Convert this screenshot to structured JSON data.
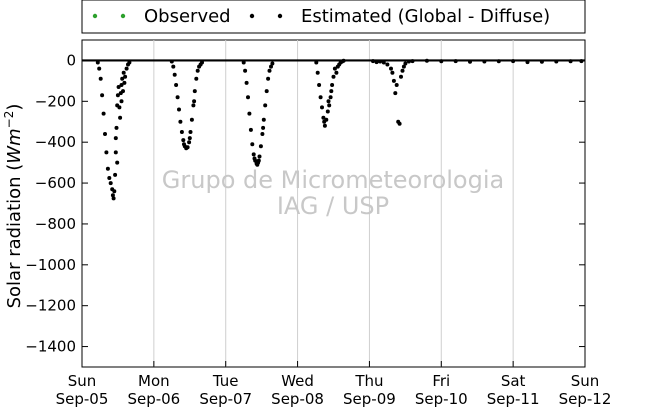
{
  "chart_data": {
    "type": "scatter",
    "ylabel": "Solar radiation (Wm⁻²)",
    "ylabel_main": "Solar radiation (",
    "ylabel_unit": "Wm",
    "ylabel_exp": "−2",
    "ylabel_close": ")",
    "ylim": [
      -1500,
      100
    ],
    "yticks": [
      0,
      -200,
      -400,
      -600,
      -800,
      -1000,
      -1200,
      -1400
    ],
    "ytick_labels": [
      "0",
      "−200",
      "−400",
      "−600",
      "−800",
      "−1000",
      "−1200",
      "−1400"
    ],
    "xlim": [
      0,
      7
    ],
    "xticks": [
      {
        "x": 0,
        "day": "Sun",
        "date": "Sep-05"
      },
      {
        "x": 1,
        "day": "Mon",
        "date": "Sep-06"
      },
      {
        "x": 2,
        "day": "Tue",
        "date": "Sep-07"
      },
      {
        "x": 3,
        "day": "Wed",
        "date": "Sep-08"
      },
      {
        "x": 4,
        "day": "Thu",
        "date": "Sep-09"
      },
      {
        "x": 5,
        "day": "Fri",
        "date": "Sep-10"
      },
      {
        "x": 6,
        "day": "Sat",
        "date": "Sep-11"
      },
      {
        "x": 7,
        "day": "Sun",
        "date": "Sep-12"
      }
    ],
    "grid": "x",
    "legend_position": "top",
    "watermark": [
      "Grupo de Micrometeorologia",
      "IAG / USP"
    ],
    "series": [
      {
        "name": "Observed",
        "color": "#2ca02c",
        "points": []
      },
      {
        "name": "Estimated (Global - Diffuse)",
        "color": "#000000",
        "points": [
          [
            0.22,
            -10
          ],
          [
            0.24,
            -40
          ],
          [
            0.26,
            -90
          ],
          [
            0.28,
            -170
          ],
          [
            0.3,
            -260
          ],
          [
            0.32,
            -360
          ],
          [
            0.34,
            -450
          ],
          [
            0.36,
            -530
          ],
          [
            0.38,
            -575
          ],
          [
            0.4,
            -600
          ],
          [
            0.42,
            -630
          ],
          [
            0.43,
            -660
          ],
          [
            0.44,
            -675
          ],
          [
            0.45,
            -640
          ],
          [
            0.46,
            -560
          ],
          [
            0.47,
            -450
          ],
          [
            0.48,
            -330
          ],
          [
            0.49,
            -220
          ],
          [
            0.5,
            -170
          ],
          [
            0.52,
            -230
          ],
          [
            0.53,
            -280
          ],
          [
            0.54,
            -160
          ],
          [
            0.55,
            -120
          ],
          [
            0.56,
            -90
          ],
          [
            0.57,
            -150
          ],
          [
            0.58,
            -60
          ],
          [
            0.6,
            -80
          ],
          [
            0.62,
            -40
          ],
          [
            0.64,
            -20
          ],
          [
            0.66,
            -10
          ],
          [
            0.47,
            -380
          ],
          [
            0.49,
            -500
          ],
          [
            0.51,
            -130
          ],
          [
            0.55,
            -200
          ],
          [
            0.59,
            -110
          ],
          [
            1.25,
            -5
          ],
          [
            1.27,
            -30
          ],
          [
            1.29,
            -70
          ],
          [
            1.31,
            -120
          ],
          [
            1.33,
            -180
          ],
          [
            1.35,
            -240
          ],
          [
            1.37,
            -300
          ],
          [
            1.39,
            -350
          ],
          [
            1.41,
            -390
          ],
          [
            1.43,
            -420
          ],
          [
            1.45,
            -430
          ],
          [
            1.47,
            -425
          ],
          [
            1.49,
            -400
          ],
          [
            1.51,
            -350
          ],
          [
            1.53,
            -290
          ],
          [
            1.55,
            -220
          ],
          [
            1.57,
            -150
          ],
          [
            1.59,
            -90
          ],
          [
            1.61,
            -50
          ],
          [
            1.63,
            -30
          ],
          [
            1.65,
            -20
          ],
          [
            1.67,
            -10
          ],
          [
            1.42,
            -410
          ],
          [
            1.5,
            -380
          ],
          [
            1.56,
            -200
          ],
          [
            2.25,
            -10
          ],
          [
            2.27,
            -50
          ],
          [
            2.29,
            -110
          ],
          [
            2.31,
            -180
          ],
          [
            2.33,
            -260
          ],
          [
            2.35,
            -340
          ],
          [
            2.37,
            -410
          ],
          [
            2.39,
            -460
          ],
          [
            2.41,
            -490
          ],
          [
            2.43,
            -505
          ],
          [
            2.45,
            -500
          ],
          [
            2.47,
            -470
          ],
          [
            2.49,
            -420
          ],
          [
            2.51,
            -360
          ],
          [
            2.53,
            -290
          ],
          [
            2.55,
            -220
          ],
          [
            2.57,
            -150
          ],
          [
            2.59,
            -90
          ],
          [
            2.61,
            -50
          ],
          [
            2.63,
            -30
          ],
          [
            2.65,
            -15
          ],
          [
            2.4,
            -480
          ],
          [
            2.44,
            -510
          ],
          [
            2.46,
            -490
          ],
          [
            2.52,
            -330
          ],
          [
            3.26,
            -10
          ],
          [
            3.28,
            -60
          ],
          [
            3.3,
            -120
          ],
          [
            3.32,
            -180
          ],
          [
            3.34,
            -230
          ],
          [
            3.36,
            -280
          ],
          [
            3.38,
            -320
          ],
          [
            3.4,
            -290
          ],
          [
            3.42,
            -250
          ],
          [
            3.44,
            -220
          ],
          [
            3.46,
            -180
          ],
          [
            3.48,
            -120
          ],
          [
            3.5,
            -80
          ],
          [
            3.52,
            -40
          ],
          [
            3.54,
            -60
          ],
          [
            3.56,
            -30
          ],
          [
            3.58,
            -20
          ],
          [
            3.6,
            -10
          ],
          [
            3.37,
            -300
          ],
          [
            3.43,
            -200
          ],
          [
            3.47,
            -150
          ],
          [
            3.62,
            -5
          ],
          [
            3.64,
            -2
          ],
          [
            4.05,
            -3
          ],
          [
            4.1,
            -8
          ],
          [
            4.15,
            -5
          ],
          [
            4.2,
            -10
          ],
          [
            4.25,
            -20
          ],
          [
            4.3,
            -40
          ],
          [
            4.32,
            -60
          ],
          [
            4.34,
            -100
          ],
          [
            4.36,
            -160
          ],
          [
            4.38,
            -120
          ],
          [
            4.4,
            -300
          ],
          [
            4.42,
            -310
          ],
          [
            4.44,
            -80
          ],
          [
            4.46,
            -50
          ],
          [
            4.48,
            -30
          ],
          [
            4.5,
            -15
          ],
          [
            4.55,
            -5
          ],
          [
            4.6,
            -3
          ],
          [
            4.8,
            -2
          ],
          [
            5.0,
            -4
          ],
          [
            5.2,
            -3
          ],
          [
            5.4,
            -6
          ],
          [
            5.6,
            -5
          ],
          [
            5.8,
            -4
          ],
          [
            6.0,
            -3
          ],
          [
            6.2,
            -8
          ],
          [
            6.4,
            -6
          ],
          [
            6.6,
            -5
          ],
          [
            6.8,
            -4
          ],
          [
            6.95,
            -3
          ]
        ]
      }
    ]
  }
}
